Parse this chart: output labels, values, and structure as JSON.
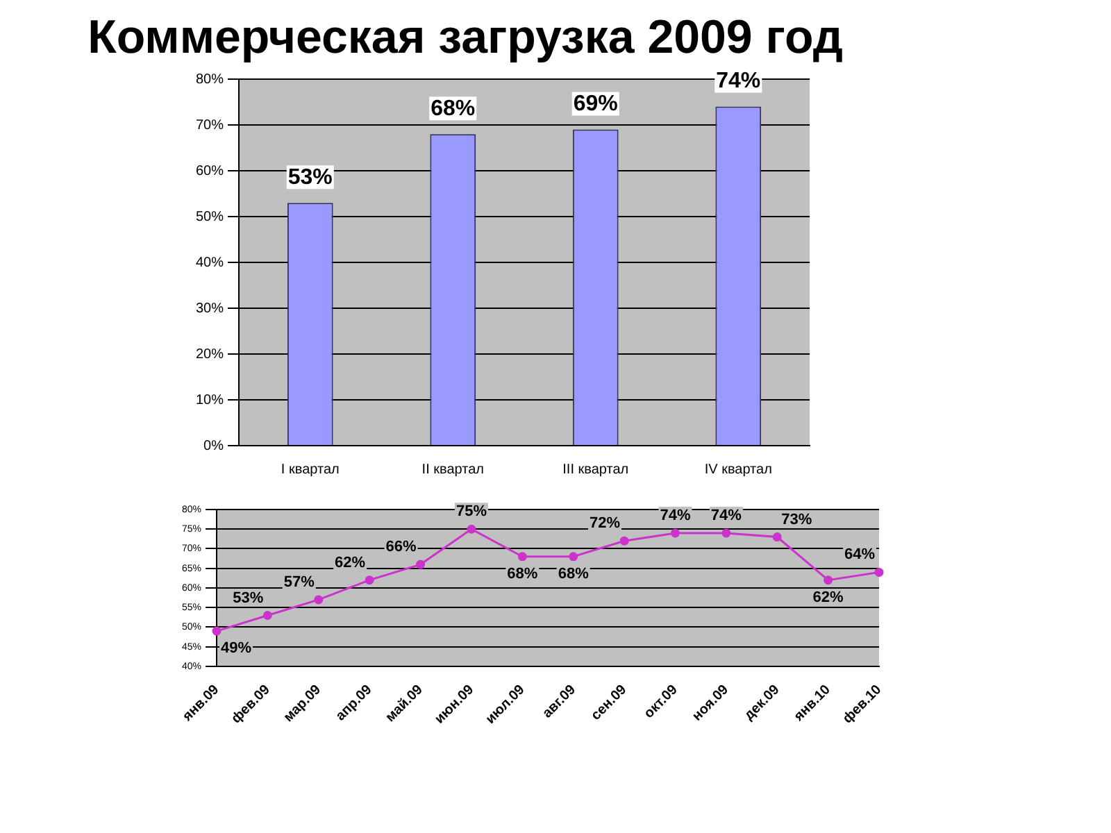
{
  "chart_data": [
    {
      "type": "bar",
      "title": "Коммерческая загрузка 2009 год",
      "categories": [
        "I квартал",
        "II квартал",
        "III квартал",
        "IV квартал"
      ],
      "values": [
        53,
        68,
        69,
        74
      ],
      "value_labels": [
        "53%",
        "68%",
        "69%",
        "74%"
      ],
      "color": "#9999ff",
      "ylim": [
        0,
        80
      ],
      "yticks": [
        {
          "value": 0,
          "label": "0%"
        },
        {
          "value": 10,
          "label": "10%"
        },
        {
          "value": 20,
          "label": "20%"
        },
        {
          "value": 30,
          "label": "30%"
        },
        {
          "value": 40,
          "label": "40%"
        },
        {
          "value": 50,
          "label": "50%"
        },
        {
          "value": 60,
          "label": "60%"
        },
        {
          "value": 70,
          "label": "70%"
        },
        {
          "value": 80,
          "label": "80%"
        }
      ],
      "grid": "y",
      "legend": false
    },
    {
      "type": "line",
      "categories": [
        "янв.09",
        "фев.09",
        "мар.09",
        "апр.09",
        "май.09",
        "июн.09",
        "июл.09",
        "авг.09",
        "сен.09",
        "окт.09",
        "ноя.09",
        "дек.09",
        "янв.10",
        "фев.10"
      ],
      "values": [
        49,
        53,
        57,
        62,
        66,
        75,
        68,
        68,
        72,
        74,
        74,
        73,
        62,
        64
      ],
      "value_labels": [
        "49%",
        "53%",
        "57%",
        "62%",
        "66%",
        "75%",
        "68%",
        "68%",
        "72%",
        "74%",
        "74%",
        "73%",
        "62%",
        "64%"
      ],
      "color": "#cc33cc",
      "marker": "circle",
      "ylim": [
        40,
        80
      ],
      "yticks": [
        {
          "value": 40,
          "label": "40%"
        },
        {
          "value": 45,
          "label": "45%"
        },
        {
          "value": 50,
          "label": "50%"
        },
        {
          "value": 55,
          "label": "55%"
        },
        {
          "value": 60,
          "label": "60%"
        },
        {
          "value": 65,
          "label": "65%"
        },
        {
          "value": 70,
          "label": "70%"
        },
        {
          "value": 75,
          "label": "75%"
        },
        {
          "value": 80,
          "label": "80%"
        }
      ],
      "grid": "y",
      "legend": false
    }
  ]
}
